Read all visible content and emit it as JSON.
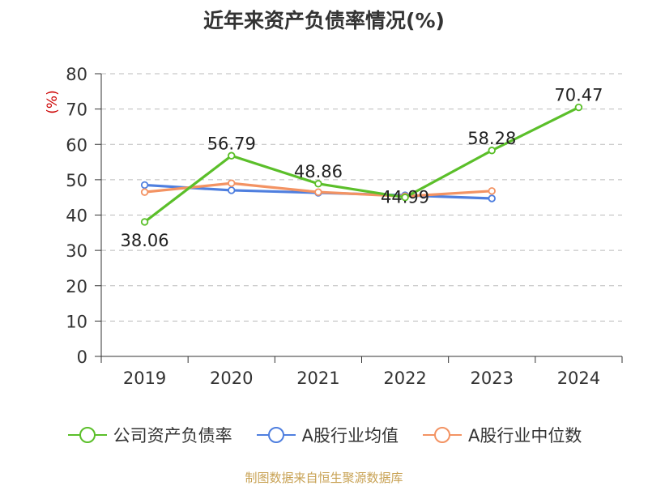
{
  "title": "近年来资产负债率情况(%)",
  "source": "制图数据来自恒生聚源数据库",
  "colors": {
    "company": "#5bbf2a",
    "industry_avg": "#4f7fdf",
    "industry_median": "#f39363",
    "axis": "#333333",
    "grid": "#bbbbbb",
    "unit_label": "#cc0000"
  },
  "chart_data": {
    "type": "line",
    "title": "近年来资产负债率情况(%)",
    "ylabel": "(%)",
    "xlabel": "",
    "categories": [
      "2019",
      "2020",
      "2021",
      "2022",
      "2023",
      "2024"
    ],
    "ylim": [
      0,
      80
    ],
    "yticks": [
      0,
      10,
      20,
      30,
      40,
      50,
      60,
      70,
      80
    ],
    "grid": true,
    "legend_position": "bottom",
    "series": [
      {
        "name": "公司资产负债率",
        "color_key": "company",
        "values": [
          38.06,
          56.79,
          48.86,
          44.99,
          58.28,
          70.47
        ],
        "labels": [
          "38.06",
          "56.79",
          "48.86",
          "44.99",
          "58.28",
          "70.47"
        ]
      },
      {
        "name": "A股行业均值",
        "color_key": "industry_avg",
        "values": [
          48.5,
          47.0,
          46.3,
          45.6,
          44.7,
          null
        ]
      },
      {
        "name": "A股行业中位数",
        "color_key": "industry_median",
        "values": [
          46.5,
          49.0,
          46.5,
          45.3,
          46.8,
          null
        ]
      }
    ]
  }
}
